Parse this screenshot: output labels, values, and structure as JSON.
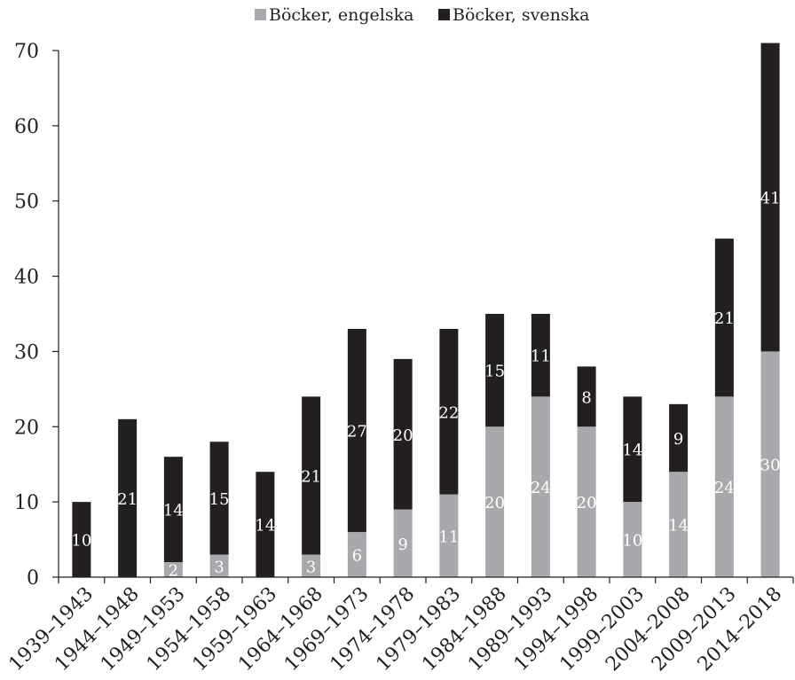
{
  "chart_data": {
    "type": "bar",
    "stacked": true,
    "title": "",
    "xlabel": "",
    "ylabel": "",
    "ylim": [
      0,
      70
    ],
    "yticks": [
      0,
      10,
      20,
      30,
      40,
      50,
      60,
      70
    ],
    "grid": false,
    "legend_position": "top",
    "categories": [
      "1939–1943",
      "1944–1948",
      "1949–1953",
      "1954–1958",
      "1959–1963",
      "1964–1968",
      "1969–1973",
      "1974–1978",
      "1979–1983",
      "1984–1988",
      "1989–1993",
      "1994–1998",
      "1999–2003",
      "2004–2008",
      "2009–2013",
      "2014–2018"
    ],
    "series": [
      {
        "name": "Böcker, engelska",
        "color": "#a7a9ac",
        "values": [
          0,
          0,
          2,
          3,
          0,
          3,
          6,
          9,
          11,
          20,
          24,
          20,
          10,
          14,
          24,
          30
        ],
        "labels": [
          "",
          "",
          "2",
          "3",
          "",
          "3",
          "6",
          "9",
          "11",
          "20",
          "24",
          "20",
          "10",
          "14",
          "24",
          "30"
        ]
      },
      {
        "name": "Böcker, svenska",
        "color": "#231f20",
        "values": [
          10,
          21,
          14,
          15,
          14,
          21,
          27,
          20,
          22,
          15,
          11,
          8,
          14,
          9,
          21,
          41
        ],
        "labels": [
          "10",
          "21",
          "14",
          "15",
          "14",
          "21",
          "27",
          "20",
          "22",
          "15",
          "11",
          "8",
          "14",
          "9",
          "21",
          "41"
        ]
      }
    ]
  }
}
